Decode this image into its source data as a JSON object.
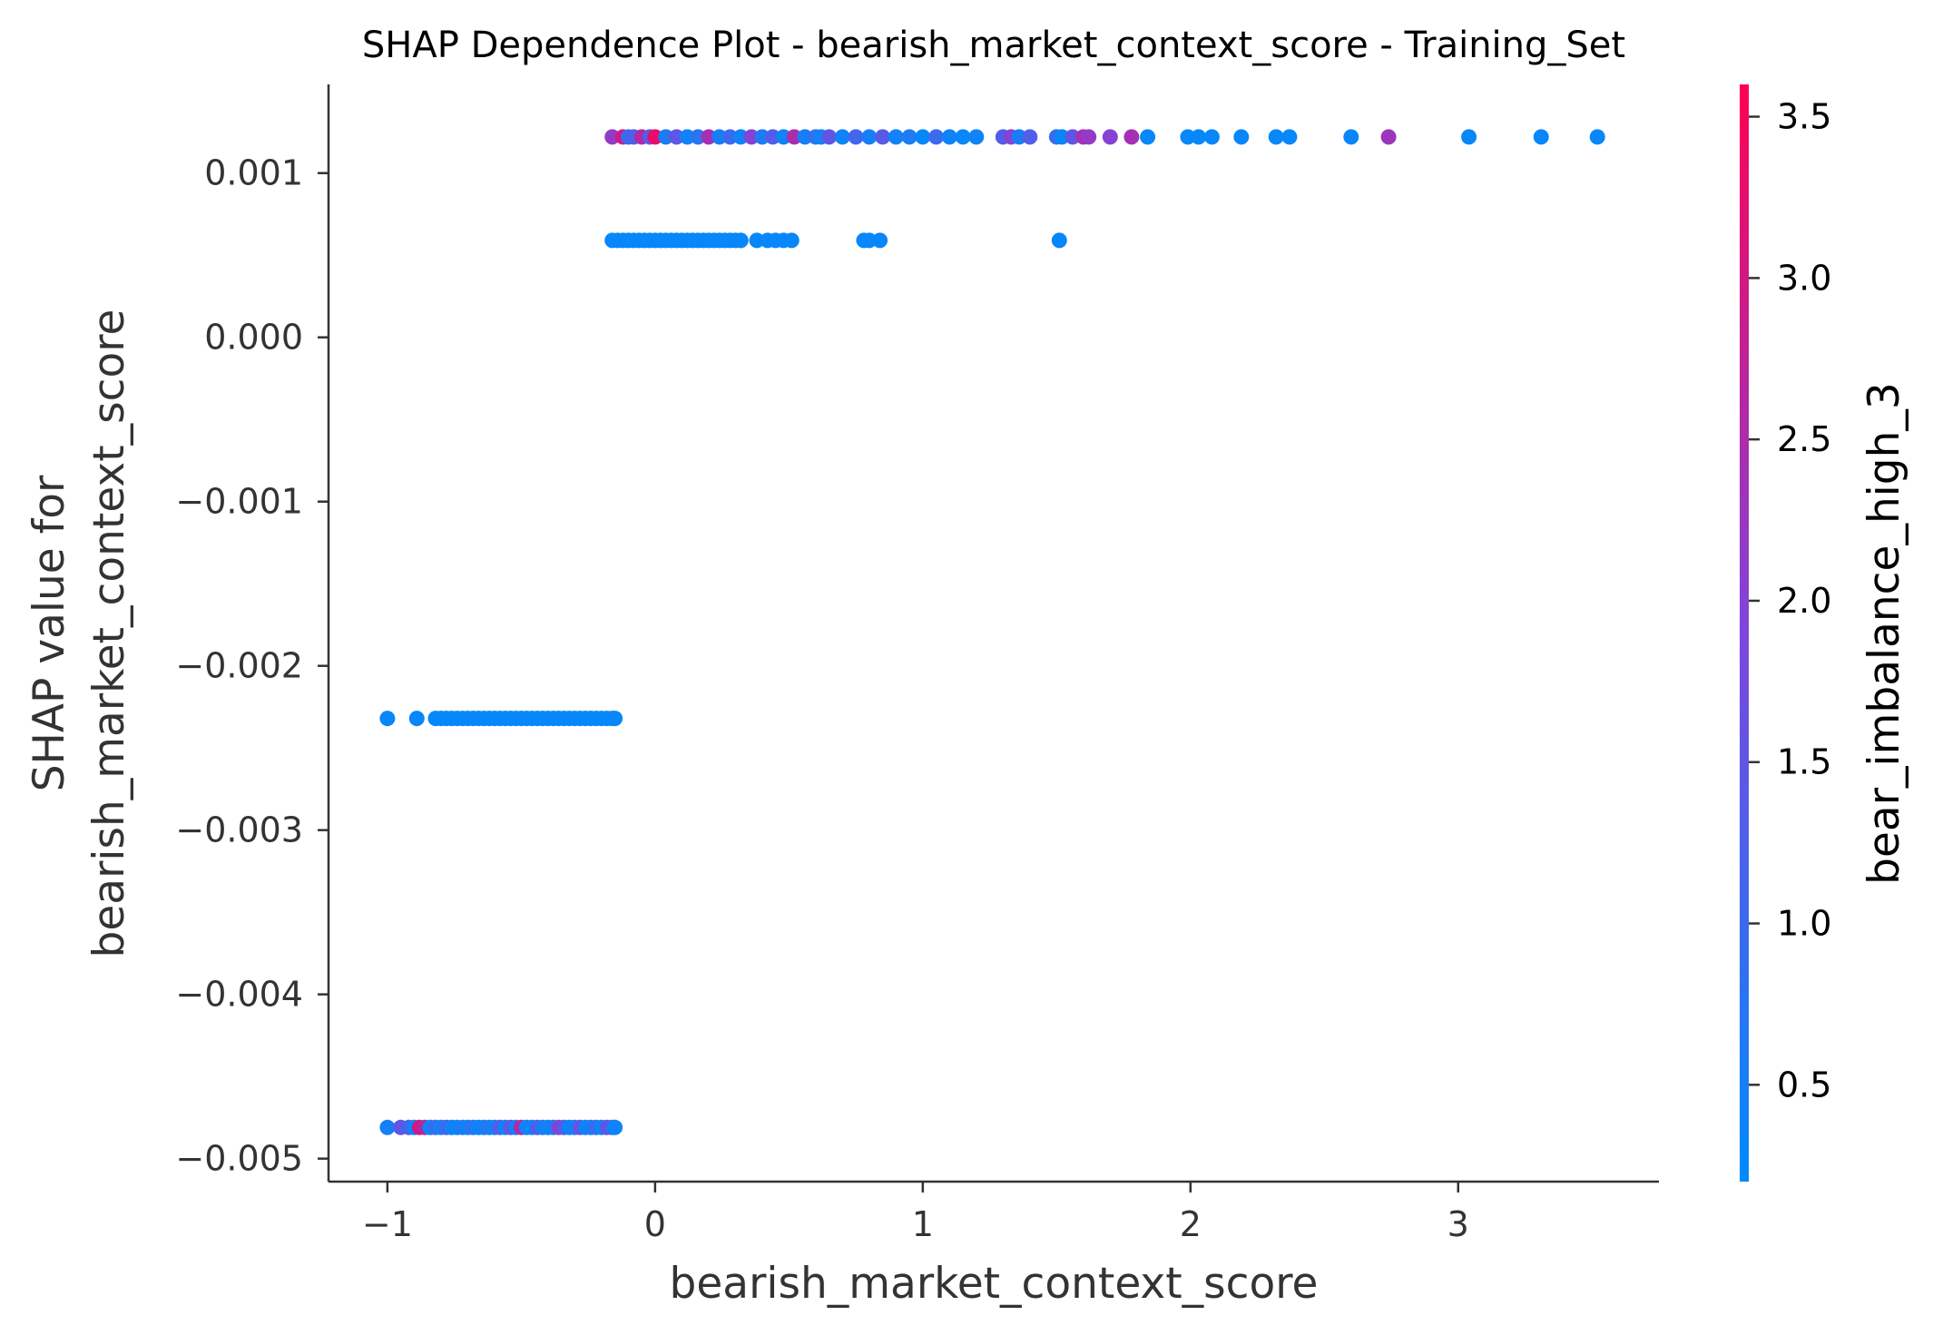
{
  "chart_data": {
    "type": "scatter",
    "title": "SHAP Dependence Plot - bearish_market_context_score - Training_Set",
    "xlabel": "bearish_market_context_score",
    "ylabel_lines": [
      "SHAP value for",
      "bearish_market_context_score"
    ],
    "xlim": [
      -1.22,
      3.75
    ],
    "ylim": [
      -0.00514,
      0.00154
    ],
    "xticks": [
      {
        "value": -1,
        "label": "−1"
      },
      {
        "value": 0,
        "label": "0"
      },
      {
        "value": 1,
        "label": "1"
      },
      {
        "value": 2,
        "label": "2"
      },
      {
        "value": 3,
        "label": "3"
      }
    ],
    "yticks": [
      {
        "value": 0.001,
        "label": "0.001"
      },
      {
        "value": 0.0,
        "label": "0.000"
      },
      {
        "value": -0.001,
        "label": "−0.001"
      },
      {
        "value": -0.002,
        "label": "−0.002"
      },
      {
        "value": -0.003,
        "label": "−0.003"
      },
      {
        "value": -0.004,
        "label": "−0.004"
      },
      {
        "value": -0.005,
        "label": "−0.005"
      }
    ],
    "grid": false,
    "colorbar": {
      "label": "bear_imbalance_high_3",
      "range": [
        0.2,
        3.6
      ],
      "ticks": [
        {
          "value": 0.5,
          "label": "0.5"
        },
        {
          "value": 1.0,
          "label": "1.0"
        },
        {
          "value": 1.5,
          "label": "1.5"
        },
        {
          "value": 2.0,
          "label": "2.0"
        },
        {
          "value": 2.5,
          "label": "2.5"
        },
        {
          "value": 3.0,
          "label": "3.0"
        },
        {
          "value": 3.5,
          "label": "3.5"
        }
      ],
      "color_low": "#008bfb",
      "color_mid": "#7e46dd",
      "color_high": "#ff0052"
    },
    "series": [
      {
        "x": [
          -1.0,
          -0.95,
          -0.92,
          -0.9,
          -0.88,
          -0.86,
          -0.84,
          -0.82,
          -0.8,
          -0.78,
          -0.76,
          -0.74,
          -0.72,
          -0.7,
          -0.68,
          -0.66,
          -0.64,
          -0.62,
          -0.6,
          -0.58,
          -0.56,
          -0.54,
          -0.52,
          -0.5,
          -0.48,
          -0.46,
          -0.44,
          -0.42,
          -0.4,
          -0.38,
          -0.36,
          -0.34,
          -0.32,
          -0.3,
          -0.28,
          -0.26,
          -0.24,
          -0.22,
          -0.2,
          -0.18,
          -0.16,
          -0.15
        ],
        "y": [
          -0.00481,
          -0.00481,
          -0.00481,
          -0.00481,
          -0.00481,
          -0.00481,
          -0.00481,
          -0.00481,
          -0.00481,
          -0.00481,
          -0.00481,
          -0.00481,
          -0.00481,
          -0.00481,
          -0.00481,
          -0.00481,
          -0.00481,
          -0.00481,
          -0.00481,
          -0.00481,
          -0.00481,
          -0.00481,
          -0.00481,
          -0.00481,
          -0.00481,
          -0.00481,
          -0.00481,
          -0.00481,
          -0.00481,
          -0.00481,
          -0.00481,
          -0.00481,
          -0.00481,
          -0.00481,
          -0.00481,
          -0.00481,
          -0.00481,
          -0.00481,
          -0.00481,
          -0.00481,
          -0.00481,
          -0.00481
        ],
        "color_values": [
          0.5,
          1.5,
          1.2,
          0.4,
          3.0,
          2.6,
          0.3,
          1.0,
          0.4,
          1.1,
          0.5,
          0.3,
          0.6,
          0.4,
          0.9,
          0.3,
          0.5,
          0.7,
          0.4,
          1.4,
          0.3,
          1.5,
          0.5,
          2.6,
          0.4,
          0.3,
          1.3,
          0.6,
          0.4,
          0.5,
          2.0,
          1.4,
          0.3,
          0.5,
          1.6,
          0.4,
          0.5,
          1.0,
          0.3,
          1.5,
          1.2,
          0.4
        ]
      },
      {
        "x": [
          -1.0,
          -0.89,
          -0.82,
          -0.8,
          -0.78,
          -0.76,
          -0.74,
          -0.72,
          -0.7,
          -0.68,
          -0.66,
          -0.64,
          -0.62,
          -0.6,
          -0.58,
          -0.56,
          -0.54,
          -0.52,
          -0.5,
          -0.48,
          -0.46,
          -0.44,
          -0.42,
          -0.4,
          -0.38,
          -0.36,
          -0.34,
          -0.32,
          -0.3,
          -0.28,
          -0.26,
          -0.24,
          -0.22,
          -0.2,
          -0.18,
          -0.16,
          -0.15
        ],
        "y": [
          -0.00232,
          -0.00232,
          -0.00232,
          -0.00232,
          -0.00232,
          -0.00232,
          -0.00232,
          -0.00232,
          -0.00232,
          -0.00232,
          -0.00232,
          -0.00232,
          -0.00232,
          -0.00232,
          -0.00232,
          -0.00232,
          -0.00232,
          -0.00232,
          -0.00232,
          -0.00232,
          -0.00232,
          -0.00232,
          -0.00232,
          -0.00232,
          -0.00232,
          -0.00232,
          -0.00232,
          -0.00232,
          -0.00232,
          -0.00232,
          -0.00232,
          -0.00232,
          -0.00232,
          -0.00232,
          -0.00232,
          -0.00232,
          -0.00232
        ],
        "color_values": [
          0.3,
          0.3,
          0.3,
          0.3,
          0.3,
          0.3,
          0.3,
          0.3,
          0.3,
          0.3,
          0.3,
          0.3,
          0.3,
          0.3,
          0.3,
          0.3,
          0.3,
          0.3,
          0.3,
          0.3,
          0.3,
          0.3,
          0.3,
          0.3,
          0.3,
          0.3,
          0.3,
          0.3,
          0.3,
          0.3,
          0.3,
          0.3,
          0.3,
          0.3,
          0.3,
          0.3,
          0.3
        ]
      },
      {
        "x": [
          -0.16,
          -0.14,
          -0.12,
          -0.1,
          -0.08,
          -0.06,
          -0.04,
          -0.02,
          0.0,
          0.02,
          0.04,
          0.06,
          0.08,
          0.1,
          0.12,
          0.14,
          0.16,
          0.18,
          0.2,
          0.22,
          0.24,
          0.26,
          0.28,
          0.3,
          0.32,
          0.38,
          0.42,
          0.45,
          0.48,
          0.51,
          0.78,
          0.8,
          0.84,
          1.51
        ],
        "y": [
          0.00059,
          0.00059,
          0.00059,
          0.00059,
          0.00059,
          0.00059,
          0.00059,
          0.00059,
          0.00059,
          0.00059,
          0.00059,
          0.00059,
          0.00059,
          0.00059,
          0.00059,
          0.00059,
          0.00059,
          0.00059,
          0.00059,
          0.00059,
          0.00059,
          0.00059,
          0.00059,
          0.00059,
          0.00059,
          0.00059,
          0.00059,
          0.00059,
          0.00059,
          0.00059,
          0.00059,
          0.00059,
          0.00059,
          0.00059
        ],
        "color_values": [
          0.3,
          0.3,
          0.3,
          0.3,
          0.3,
          0.3,
          0.3,
          0.3,
          0.3,
          0.3,
          0.3,
          0.3,
          0.3,
          0.3,
          0.3,
          0.3,
          0.3,
          0.3,
          0.3,
          0.3,
          0.3,
          0.3,
          0.3,
          0.3,
          0.3,
          0.3,
          0.3,
          0.3,
          0.3,
          0.3,
          0.3,
          0.3,
          0.3,
          0.3
        ]
      },
      {
        "x": [
          -0.16,
          -0.12,
          -0.1,
          -0.08,
          -0.05,
          -0.02,
          0.0,
          0.04,
          0.08,
          0.12,
          0.16,
          0.2,
          0.24,
          0.28,
          0.32,
          0.36,
          0.4,
          0.44,
          0.48,
          0.52,
          0.56,
          0.6,
          0.62,
          0.65,
          0.7,
          0.75,
          0.8,
          0.85,
          0.9,
          0.95,
          1.0,
          1.05,
          1.1,
          1.15,
          1.2,
          1.3,
          1.33,
          1.36,
          1.4,
          1.5,
          1.52,
          1.56,
          1.6,
          1.62,
          1.7,
          1.78,
          1.84,
          1.99,
          2.03,
          2.08,
          2.19,
          2.32,
          2.37,
          2.6,
          2.74,
          3.04,
          3.31,
          3.52
        ],
        "y": [
          0.00122,
          0.00122,
          0.00122,
          0.00122,
          0.00122,
          0.00122,
          0.00122,
          0.00122,
          0.00122,
          0.00122,
          0.00122,
          0.00122,
          0.00122,
          0.00122,
          0.00122,
          0.00122,
          0.00122,
          0.00122,
          0.00122,
          0.00122,
          0.00122,
          0.00122,
          0.00122,
          0.00122,
          0.00122,
          0.00122,
          0.00122,
          0.00122,
          0.00122,
          0.00122,
          0.00122,
          0.00122,
          0.00122,
          0.00122,
          0.00122,
          0.00122,
          0.00122,
          0.00122,
          0.00122,
          0.00122,
          0.00122,
          0.00122,
          0.00122,
          0.00122,
          0.00122,
          0.00122,
          0.00122,
          0.00122,
          0.00122,
          0.00122,
          0.00122,
          0.00122,
          0.00122,
          0.00122,
          0.00122,
          0.00122,
          0.00122,
          0.00122
        ],
        "color_values": [
          2.2,
          3.0,
          1.0,
          1.2,
          2.6,
          1.4,
          3.3,
          0.6,
          1.5,
          0.4,
          0.8,
          2.4,
          0.5,
          1.0,
          0.4,
          2.0,
          0.6,
          1.3,
          0.4,
          2.5,
          0.5,
          0.9,
          0.4,
          1.5,
          0.4,
          1.1,
          0.5,
          1.4,
          0.4,
          0.6,
          0.3,
          1.0,
          0.4,
          0.3,
          0.4,
          1.3,
          2.0,
          0.5,
          1.3,
          1.0,
          0.3,
          1.5,
          2.4,
          2.2,
          2.0,
          2.4,
          0.3,
          0.3,
          0.3,
          0.3,
          0.3,
          0.3,
          0.3,
          0.3,
          2.3,
          0.3,
          0.3,
          0.3
        ]
      }
    ]
  }
}
